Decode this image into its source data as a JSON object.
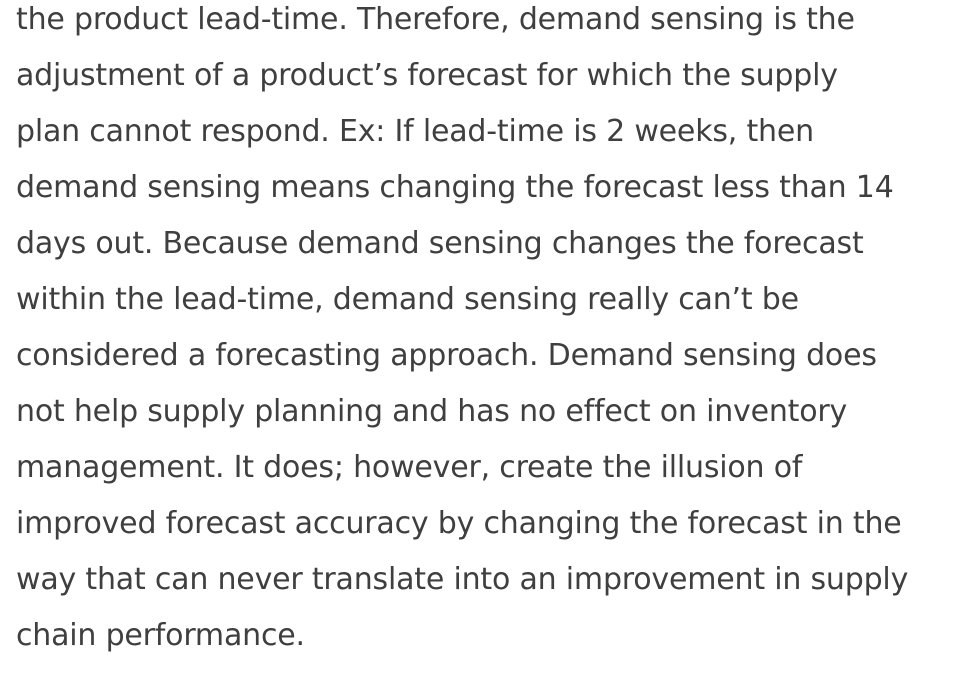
{
  "article": {
    "lines": [
      "the product lead-time. Therefore, demand sensing is the",
      "adjustment of a product’s forecast for which the supply",
      "plan cannot respond. Ex: If lead-time is 2 weeks, then",
      "demand sensing means changing the forecast less than 14",
      "days out. Because demand sensing changes the forecast",
      "within the lead-time, demand sensing really can’t be",
      "considered a forecasting approach. Demand sensing does",
      "not help supply planning and has no effect on inventory",
      "management. It does; however, create the illusion of",
      "improved forecast accuracy by changing the forecast in the",
      "way that can never translate into an improvement in supply",
      "chain performance."
    ]
  }
}
